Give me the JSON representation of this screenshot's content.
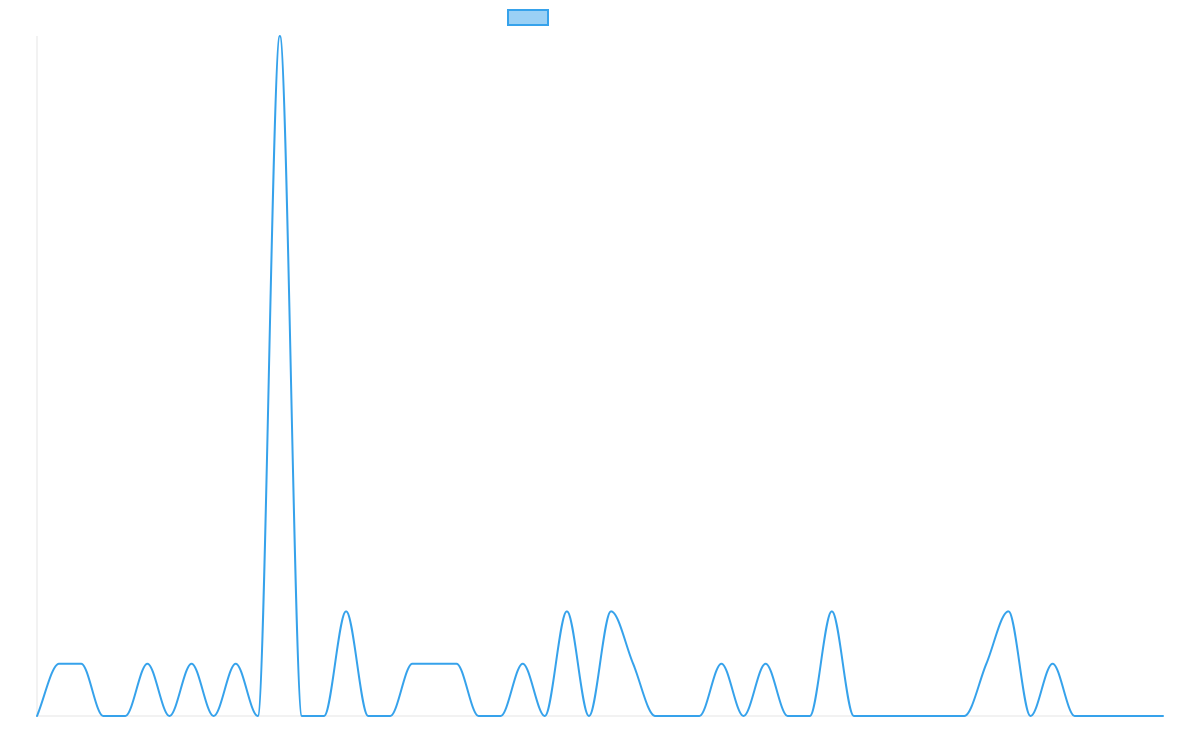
{
  "chart_data": {
    "type": "line",
    "title": "",
    "xlabel": "",
    "ylabel": "",
    "grid": false,
    "legend_position": "top-center",
    "colors": {
      "line": "#36a2eb",
      "legend_fill": "#9ad0f5",
      "axis": "#e5e5e5"
    },
    "ylim": [
      0,
      13
    ],
    "series": [
      {
        "name": "",
        "values": [
          0,
          1,
          1,
          0,
          0,
          1,
          0,
          1,
          0,
          1,
          0,
          13,
          0,
          0,
          2,
          0,
          0,
          1,
          1,
          1,
          0,
          0,
          1,
          0,
          2,
          0,
          2,
          1,
          0,
          0,
          0,
          1,
          0,
          1,
          0,
          0,
          2,
          0,
          0,
          0,
          0,
          0,
          0,
          1,
          2,
          0,
          1,
          0,
          0,
          0,
          0,
          0
        ]
      }
    ]
  }
}
